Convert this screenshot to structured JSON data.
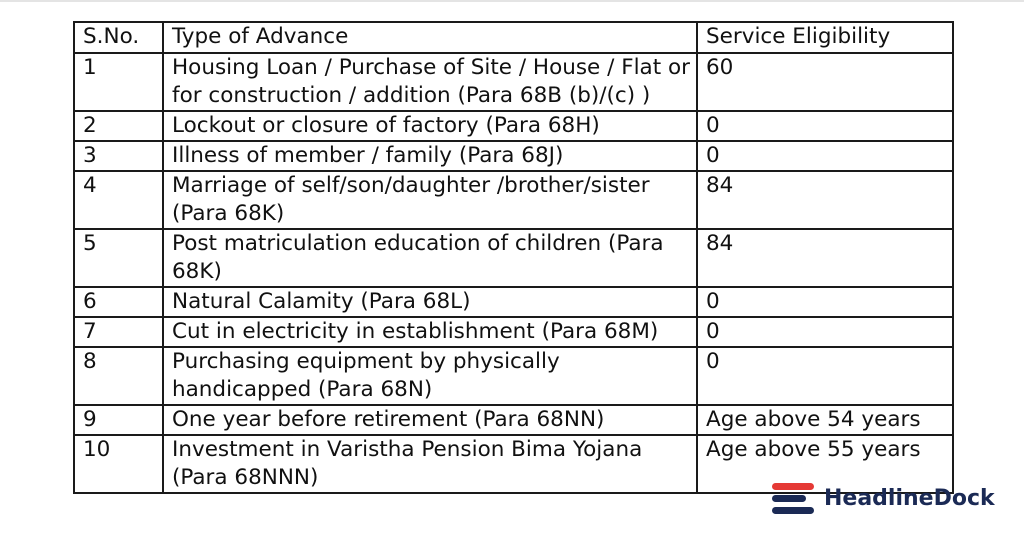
{
  "table": {
    "headers": [
      "S.No.",
      "Type of Advance",
      "Service Eligibility"
    ],
    "rows": [
      {
        "sno": "1",
        "type": "Housing Loan / Purchase of Site / House / Flat or for construction / addition (Para 68B (b)/(c) )",
        "eligibility": "60"
      },
      {
        "sno": "2",
        "type": "Lockout or closure of factory (Para 68H)",
        "eligibility": "0"
      },
      {
        "sno": "3",
        "type": "Illness of member / family (Para 68J)",
        "eligibility": "0"
      },
      {
        "sno": "4",
        "type": "Marriage of self/son/daughter /brother/sister (Para 68K)",
        "eligibility": "84"
      },
      {
        "sno": "5",
        "type": "Post matriculation education of children (Para 68K)",
        "eligibility": "84"
      },
      {
        "sno": "6",
        "type": "Natural Calamity (Para 68L)",
        "eligibility": "0"
      },
      {
        "sno": "7",
        "type": "Cut in electricity in establishment (Para 68M)",
        "eligibility": "0"
      },
      {
        "sno": "8",
        "type": "Purchasing equipment by physically handicapped (Para 68N)",
        "eligibility": "0"
      },
      {
        "sno": "9",
        "type": "One year before retirement (Para 68NN)",
        "eligibility": "Age above 54 years"
      },
      {
        "sno": "10",
        "type": "Investment in Varistha Pension Bima Yojana (Para 68NNN)",
        "eligibility": "Age above 55 years"
      }
    ]
  },
  "watermark": {
    "text": "HeadlineDock",
    "colors": {
      "accent": "#e53935",
      "brand": "#1b2a55"
    }
  }
}
